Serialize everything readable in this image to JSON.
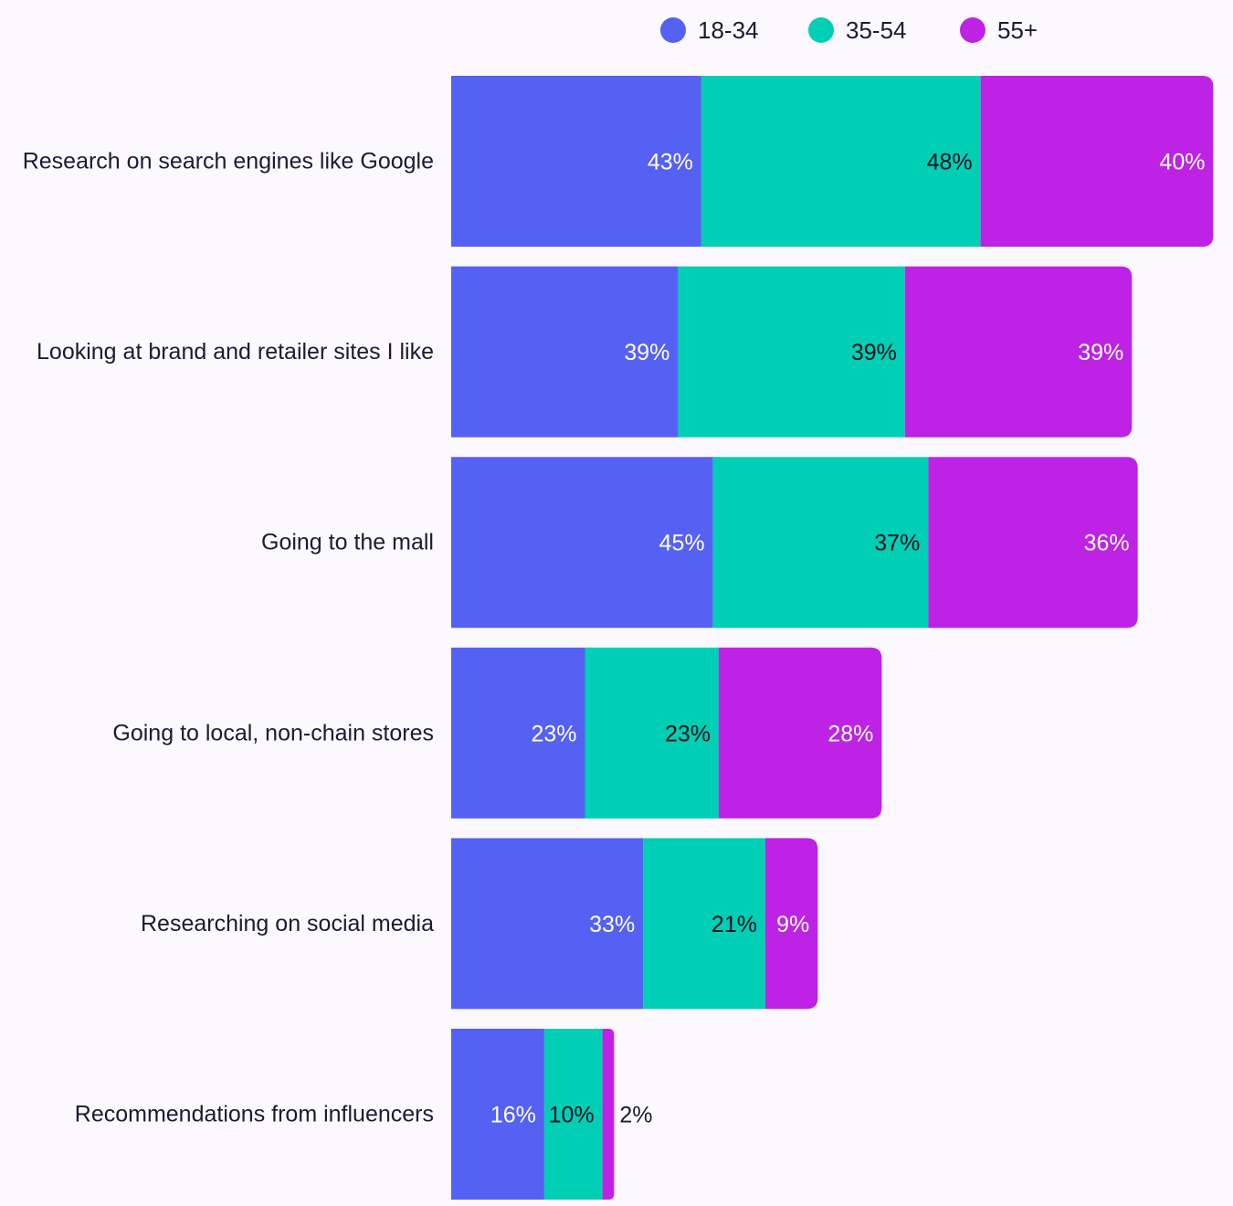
{
  "chart_data": {
    "type": "bar",
    "orientation": "horizontal",
    "stacked": true,
    "categories": [
      "Research on search engines like Google",
      "Looking at brand and retailer sites I like",
      "Going to the mall",
      "Going to local, non-chain stores",
      "Researching on social media",
      "Recommendations from influencers"
    ],
    "series": [
      {
        "name": "18-34",
        "color": "#5561f2",
        "label_color": "#ffffff",
        "values": [
          43,
          39,
          45,
          23,
          33,
          16
        ]
      },
      {
        "name": "35-54",
        "color": "#00cfb5",
        "label_color": "#0d0d1a",
        "values": [
          48,
          39,
          37,
          23,
          21,
          10
        ]
      },
      {
        "name": "55+",
        "color": "#be22e4",
        "label_color": "#ffffff",
        "values": [
          40,
          39,
          36,
          28,
          9,
          2
        ]
      }
    ],
    "value_suffix": "%",
    "legend_position": "top",
    "grid": false
  }
}
